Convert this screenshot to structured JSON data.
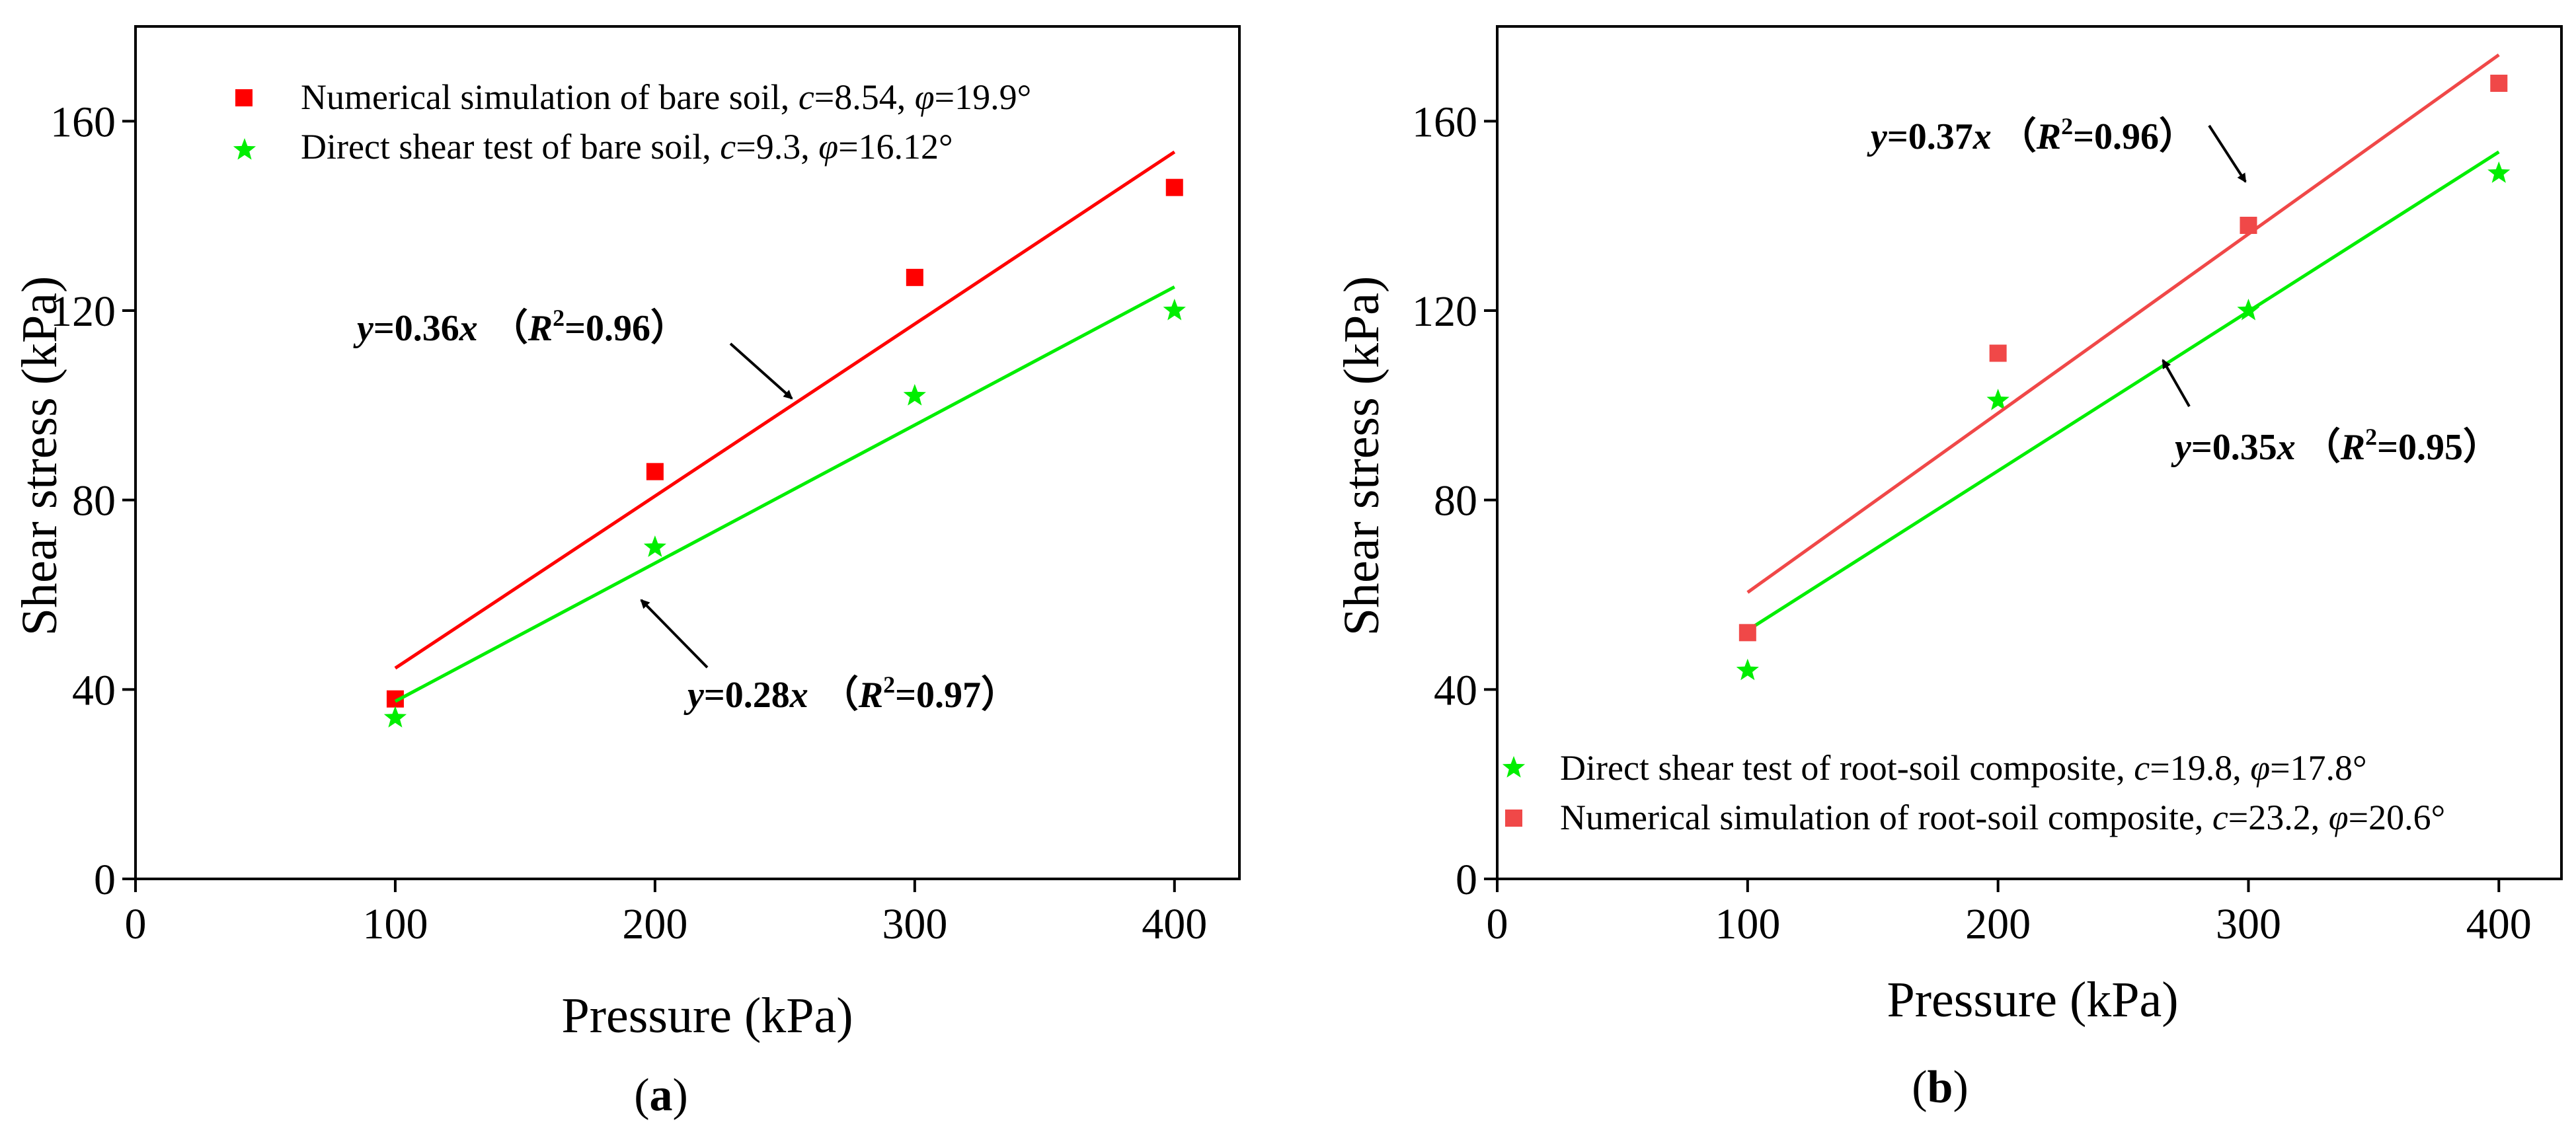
{
  "chart_data": [
    {
      "type": "scatter",
      "panel_label": "(a)",
      "xlabel": "Pressure (kPa)",
      "ylabel": "Shear stress (kPa)",
      "xlim": [
        0,
        425
      ],
      "ylim": [
        0,
        180
      ],
      "xticks": [
        0,
        100,
        200,
        300,
        400
      ],
      "xtick_labels": [
        "0",
        "100",
        "200",
        "300",
        "400"
      ],
      "yticks": [
        0,
        40,
        80,
        120,
        160
      ],
      "ytick_labels": [
        "0",
        "40",
        "80",
        "120",
        "160"
      ],
      "legend_position": "top-left",
      "series": [
        {
          "name": "Numerical simulation of bare soil",
          "legend_label": "Numerical simulation of bare soil, ",
          "legend_params": [
            "c",
            "=8.54, ",
            "φ",
            "=19.9°"
          ],
          "marker": "square",
          "color": "#ff0000",
          "x": [
            100,
            200,
            300,
            400
          ],
          "y": [
            38,
            86,
            127,
            146
          ],
          "fit": {
            "x": [
              100,
              400
            ],
            "y": [
              44.5,
              153.5
            ]
          }
        },
        {
          "name": "Direct shear test of bare soil",
          "legend_label": "Direct shear test of bare soil, ",
          "legend_params": [
            "c",
            "=9.3, ",
            "φ",
            "=16.12°"
          ],
          "marker": "star",
          "color": "#00ee00",
          "x": [
            100,
            200,
            300,
            400
          ],
          "y": [
            34,
            70,
            102,
            120
          ],
          "fit": {
            "x": [
              100,
              400
            ],
            "y": [
              37.5,
              125
            ]
          }
        }
      ],
      "annotations": [
        {
          "y": "y",
          "eq": "=0.36",
          "x": "x",
          "r_open": "（",
          "r": "R",
          "sup": "2",
          "val": "=0.96）"
        },
        {
          "y": "y",
          "eq": "=0.28",
          "x": "x",
          "r_open": "（",
          "r": "R",
          "sup": "2",
          "val": "=0.97）"
        }
      ]
    },
    {
      "type": "scatter",
      "panel_label": "(b)",
      "xlabel": "Pressure (kPa)",
      "ylabel": "Shear stress (kPa)",
      "xlim": [
        0,
        425
      ],
      "ylim": [
        0,
        180
      ],
      "xticks": [
        0,
        100,
        200,
        300,
        400
      ],
      "xtick_labels": [
        "0",
        "100",
        "200",
        "300",
        "400"
      ],
      "yticks": [
        0,
        40,
        80,
        120,
        160
      ],
      "ytick_labels": [
        "0",
        "40",
        "80",
        "120",
        "160"
      ],
      "legend_position": "bottom-left",
      "series": [
        {
          "name": "Direct shear test of root-soil composite",
          "legend_label": "Direct shear test of root-soil composite, ",
          "legend_params": [
            "c",
            "=19.8, ",
            "φ",
            "=17.8°"
          ],
          "marker": "star",
          "color": "#00ee00",
          "x": [
            100,
            200,
            300,
            400
          ],
          "y": [
            44,
            101,
            120,
            149
          ],
          "fit": {
            "x": [
              100,
              400
            ],
            "y": [
              52.5,
              153.5
            ]
          }
        },
        {
          "name": "Numerical simulation of root-soil composite",
          "legend_label": "Numerical simulation of root-soil composite, ",
          "legend_params": [
            "c",
            "=23.2, ",
            "φ",
            "=20.6°"
          ],
          "marker": "square",
          "color": "#f04848",
          "x": [
            100,
            200,
            300,
            400
          ],
          "y": [
            52,
            111,
            138,
            168
          ],
          "fit": {
            "x": [
              100,
              400
            ],
            "y": [
              60.5,
              174
            ]
          }
        }
      ],
      "annotations": [
        {
          "y": "y",
          "eq": "=0.37",
          "x": "x",
          "r_open": "（",
          "r": "R",
          "sup": "2",
          "val": "=0.96）"
        },
        {
          "y": "y",
          "eq": "=0.35",
          "x": "x",
          "r_open": "（",
          "r": "R",
          "sup": "2",
          "val": "=0.95）"
        }
      ]
    }
  ]
}
